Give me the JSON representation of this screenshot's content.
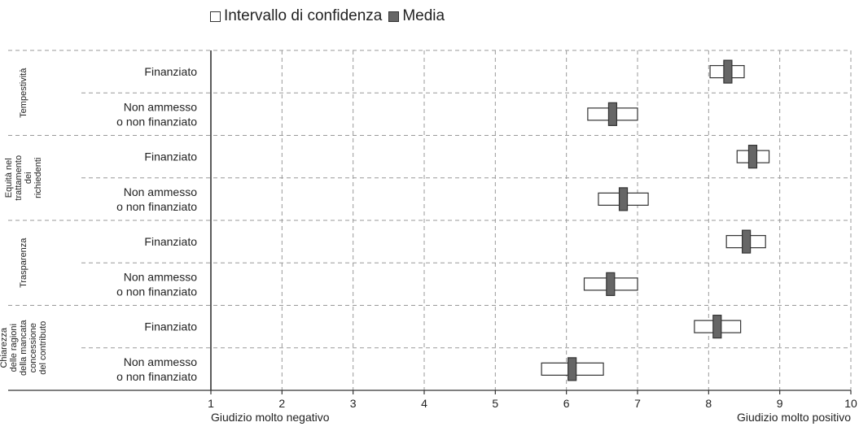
{
  "legend": {
    "ci_label": "Intervallo di confidenza",
    "mean_label": "Media"
  },
  "colors": {
    "mean_fill": "#666666",
    "ci_fill": "#ffffff",
    "stroke": "#333333",
    "grid": "#999999"
  },
  "chart_data": {
    "type": "range-bar",
    "grid": true,
    "legend_position": "top",
    "xlim": [
      1,
      10
    ],
    "xticks": [
      1,
      2,
      3,
      4,
      5,
      6,
      7,
      8,
      9,
      10
    ],
    "x_end_labels": {
      "left": "Giudizio molto negativo",
      "right": "Giudizio molto positivo"
    },
    "groups": [
      {
        "label": "Tempestività",
        "rows": [
          {
            "category": "Finanziato",
            "mean": 8.27,
            "ci": [
              8.02,
              8.5
            ]
          },
          {
            "category": "Non ammesso o non finanziato",
            "mean": 6.65,
            "ci": [
              6.3,
              7.0
            ]
          }
        ]
      },
      {
        "label": "Equità nel trattamento dei richiedenti",
        "rows": [
          {
            "category": "Finanziato",
            "mean": 8.62,
            "ci": [
              8.4,
              8.85
            ]
          },
          {
            "category": "Non ammesso o non finanziato",
            "mean": 6.8,
            "ci": [
              6.45,
              7.15
            ]
          }
        ]
      },
      {
        "label": "Trasparenza",
        "rows": [
          {
            "category": "Finanziato",
            "mean": 8.53,
            "ci": [
              8.25,
              8.8
            ]
          },
          {
            "category": "Non ammesso o non finanziato",
            "mean": 6.62,
            "ci": [
              6.25,
              7.0
            ]
          }
        ]
      },
      {
        "label": "Chiarezza delle ragioni della mancata concessione del contributo",
        "rows": [
          {
            "category": "Finanziato",
            "mean": 8.12,
            "ci": [
              7.8,
              8.45
            ]
          },
          {
            "category": "Non ammesso o non finanziato",
            "mean": 6.08,
            "ci": [
              5.65,
              6.52
            ]
          }
        ]
      }
    ]
  }
}
